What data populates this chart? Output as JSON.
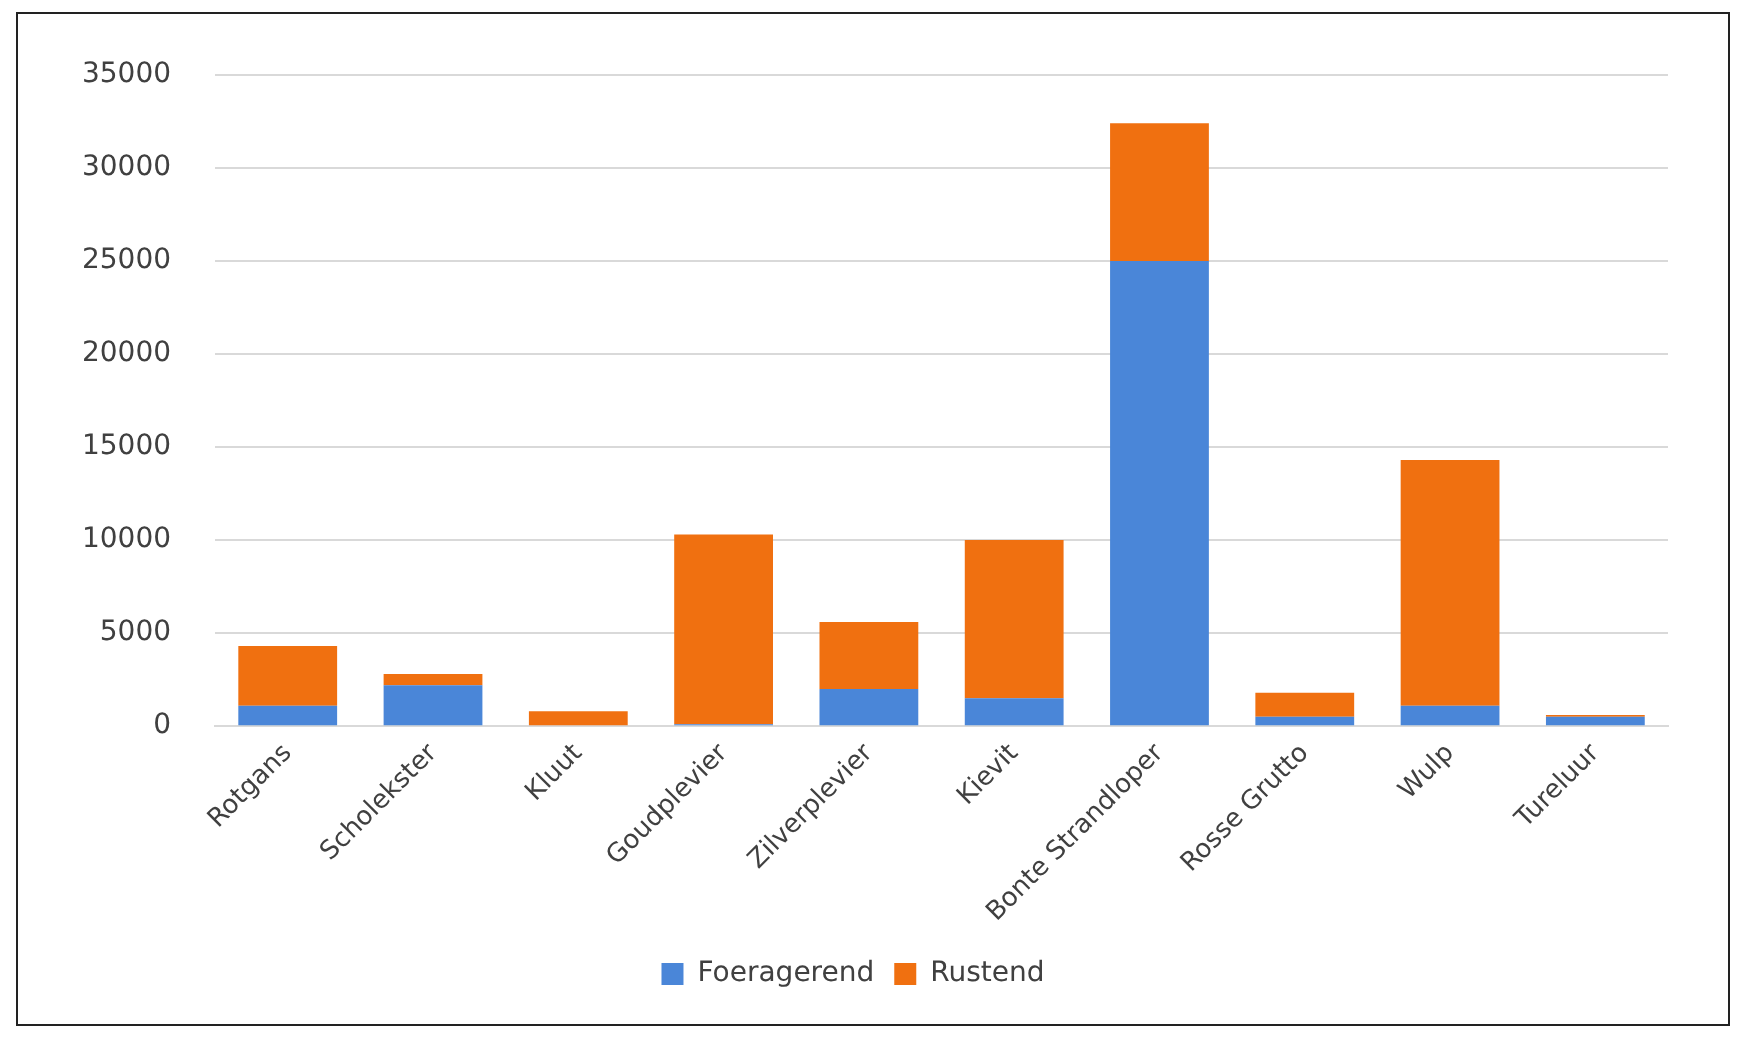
{
  "chart_data": {
    "type": "bar",
    "stacked": true,
    "categories": [
      "Rotgans",
      "Scholekster",
      "Kluut",
      "Goudplevier",
      "Zilverplevier",
      "Kievit",
      "Bonte Strandloper",
      "Rosse Grutto",
      "Wulp",
      "Tureluur"
    ],
    "series": [
      {
        "name": "Foeragerend",
        "color": "#4a86d8",
        "values": [
          1100,
          2200,
          0,
          100,
          2000,
          1500,
          25000,
          500,
          1100,
          500
        ]
      },
      {
        "name": "Rustend",
        "color": "#f07010",
        "values": [
          3200,
          600,
          800,
          10200,
          3600,
          8500,
          7400,
          1300,
          13200,
          100
        ]
      }
    ],
    "ylim": [
      0,
      35000
    ],
    "yticks": [
      0,
      5000,
      10000,
      15000,
      20000,
      25000,
      30000,
      35000
    ],
    "grid": "y",
    "legend": "bottom"
  }
}
